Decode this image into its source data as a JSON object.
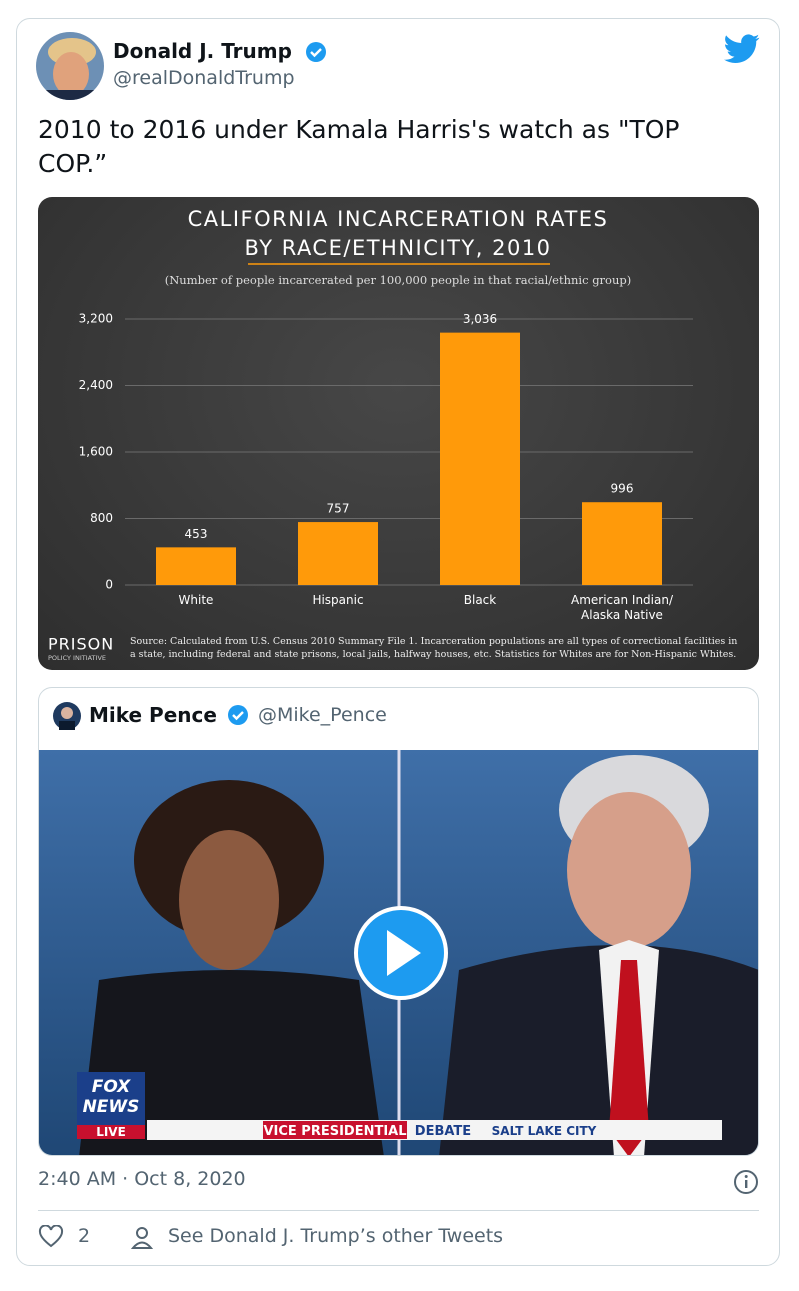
{
  "tweet": {
    "name": "Donald J. Trump",
    "handle": "@realDonaldTrump",
    "text": "2010 to 2016 under Kamala Harris's watch as \"TOP COP.”"
  },
  "chart_data": {
    "type": "bar",
    "title": [
      "CALIFORNIA INCARCERATION RATES",
      "BY RACE/ETHNICITY, 2010"
    ],
    "subtitle": "(Number of people incarcerated per 100,000 people in that racial/ethnic group)",
    "categories": [
      "White",
      "Hispanic",
      "Black",
      "American Indian/ Alaska Native"
    ],
    "values": [
      453,
      757,
      3036,
      996
    ],
    "value_labels": [
      "453",
      "757",
      "3,036",
      "996"
    ],
    "color": "#ff9a0a",
    "ylim": [
      0,
      3200
    ],
    "yticks": [
      0,
      800,
      {
        "value": 1600,
        "label": "1,600"
      },
      {
        "value": 2400,
        "label": "2,400"
      },
      {
        "value": 3200,
        "label": "3,200"
      }
    ],
    "grid": true,
    "logo": [
      "PRISON",
      "POLICY INITIATIVE"
    ],
    "source": "Source: Calculated from U.S. Census 2010 Summary File 1. Incarceration populations are all types of correctional facilities in a state, including federal and state prisons, local jails, halfway houses, etc. Statistics for Whites are for Non-Hispanic Whites."
  },
  "quote": {
    "name": "Mike Pence",
    "handle": "@Mike_Pence",
    "video": {
      "network": [
        "FOX",
        "NEWS",
        "LIVE"
      ],
      "banner": [
        "VICE PRESIDENTIAL",
        "DEBATE",
        "SALT LAKE CITY"
      ]
    }
  },
  "footer": {
    "time": "2:40 AM · Oct 8, 2020",
    "likes": "2",
    "other": "See Donald J. Trump’s other Tweets"
  }
}
